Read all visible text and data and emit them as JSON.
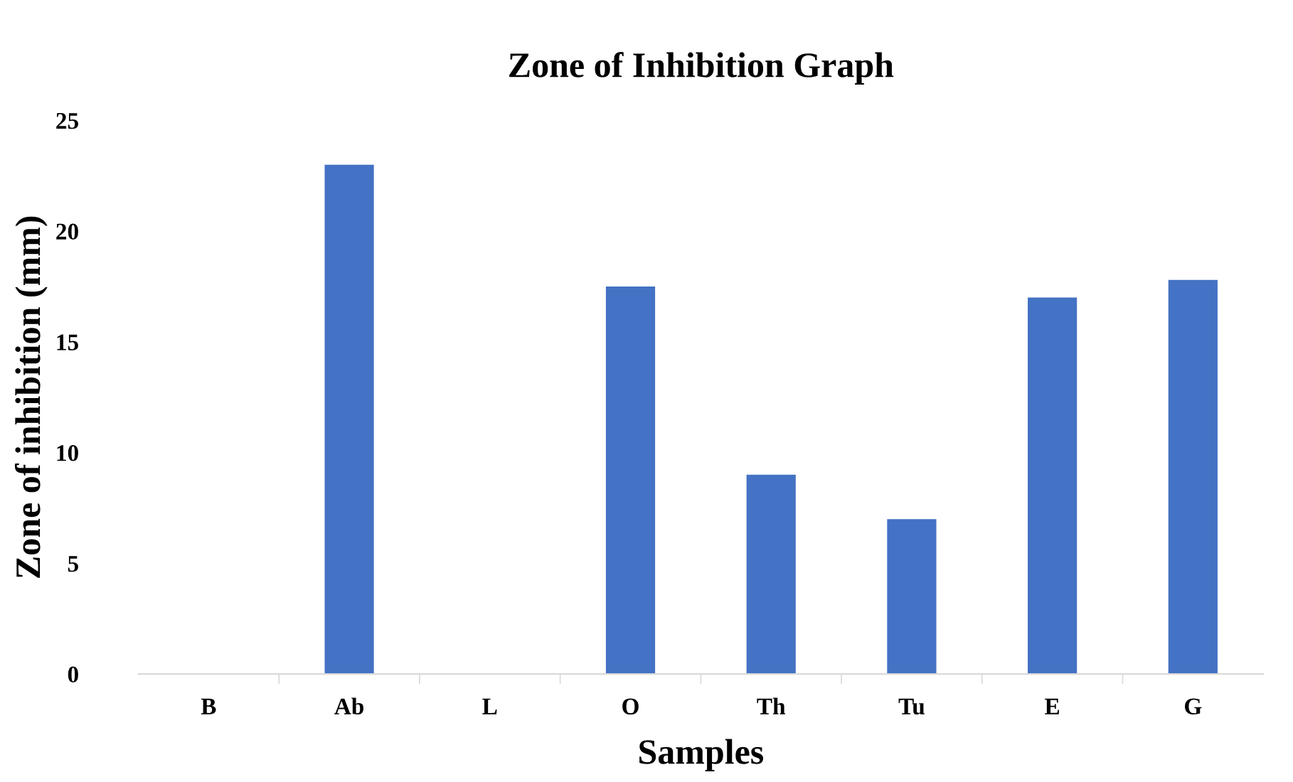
{
  "chart_data": {
    "type": "bar",
    "title": "Zone of Inhibition Graph",
    "xlabel": "Samples",
    "ylabel": "Zone of inhibition (mm)",
    "categories": [
      "B",
      "Ab",
      "L",
      "O",
      "Th",
      "Tu",
      "E",
      "G"
    ],
    "values": [
      0,
      23,
      0,
      17.5,
      9,
      7,
      17,
      17.8
    ],
    "color": "#4472c4",
    "ylim": [
      0,
      25
    ],
    "yticks": [
      0,
      5,
      10,
      15,
      20,
      25
    ],
    "grid": false,
    "legend": false
  }
}
